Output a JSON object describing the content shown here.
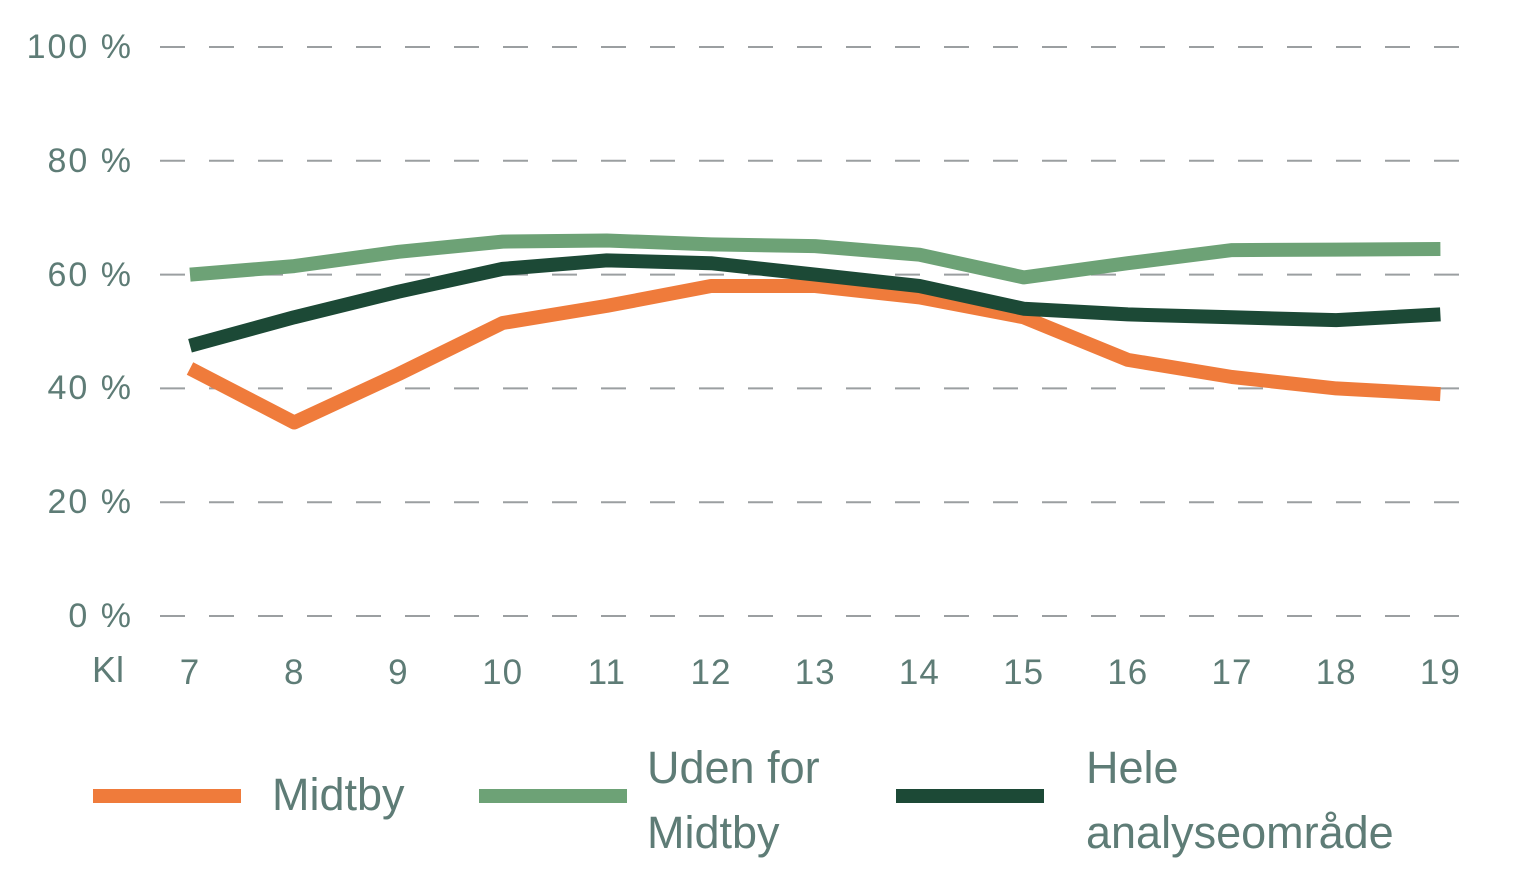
{
  "chart_data": {
    "type": "line",
    "title": "",
    "xlabel": "Kl",
    "ylabel": "",
    "x": [
      7,
      8,
      9,
      10,
      11,
      12,
      13,
      14,
      15,
      16,
      17,
      18,
      19
    ],
    "x_tick_labels": [
      "7",
      "8",
      "9",
      "10",
      "11",
      "12",
      "13",
      "14",
      "15",
      "16",
      "17",
      "18",
      "19"
    ],
    "ylim": [
      0,
      100
    ],
    "yticks": [
      0,
      20,
      40,
      60,
      80,
      100
    ],
    "ytick_labels": [
      "0 %",
      "20 %",
      "40 %",
      "60 %",
      "80 %",
      "100 %"
    ],
    "grid": "horizontal-dashed",
    "legend_position": "bottom",
    "series": [
      {
        "name": "Midtby",
        "color": "#EF7B3B",
        "values": [
          43.5,
          34,
          42.5,
          51.5,
          54.5,
          58,
          58,
          56,
          52.5,
          45,
          42,
          40,
          39
        ]
      },
      {
        "name": "Uden for Midtby",
        "color": "#6DA276",
        "values": [
          60,
          61.5,
          64,
          65.8,
          66,
          65.3,
          65,
          63.5,
          59.5,
          62,
          64.3,
          64.4,
          64.5
        ]
      },
      {
        "name": "Hele analyseområde",
        "color": "#1C4936",
        "values": [
          47.5,
          52.5,
          57,
          61,
          62.5,
          62,
          60,
          58,
          54,
          53,
          52.5,
          52,
          53
        ]
      }
    ]
  },
  "legend": {
    "items": [
      {
        "label_lines": [
          "Midtby"
        ],
        "color": "#EF7B3B"
      },
      {
        "label_lines": [
          "Uden for",
          "Midtby"
        ],
        "color": "#6DA276"
      },
      {
        "label_lines": [
          "Hele",
          "analyseområde"
        ],
        "color": "#1C4936"
      }
    ]
  },
  "styles": {
    "text_color": "#5E7C76",
    "gridline_color": "#9B9FA1",
    "background": "#FFFFFF"
  }
}
